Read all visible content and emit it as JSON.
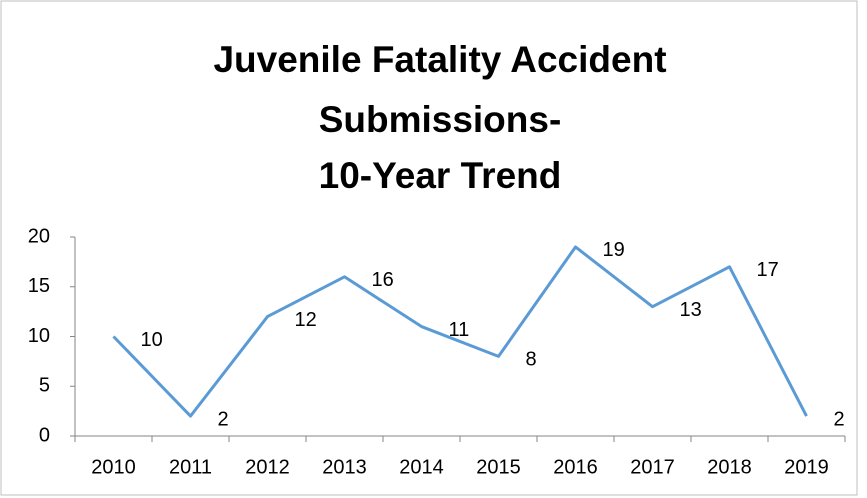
{
  "chart_data": {
    "type": "line",
    "title": [
      "Juvenile Fatality Accident",
      "Submissions-",
      "10-Year Trend"
    ],
    "categories": [
      "2010",
      "2011",
      "2012",
      "2013",
      "2014",
      "2015",
      "2016",
      "2017",
      "2018",
      "2019"
    ],
    "values": [
      10,
      2,
      12,
      16,
      11,
      8,
      19,
      13,
      17,
      2
    ],
    "color": "#5b9bd5",
    "ylim": [
      0,
      20
    ],
    "yticks": [
      0,
      5,
      10,
      15,
      20
    ],
    "grid": false
  }
}
